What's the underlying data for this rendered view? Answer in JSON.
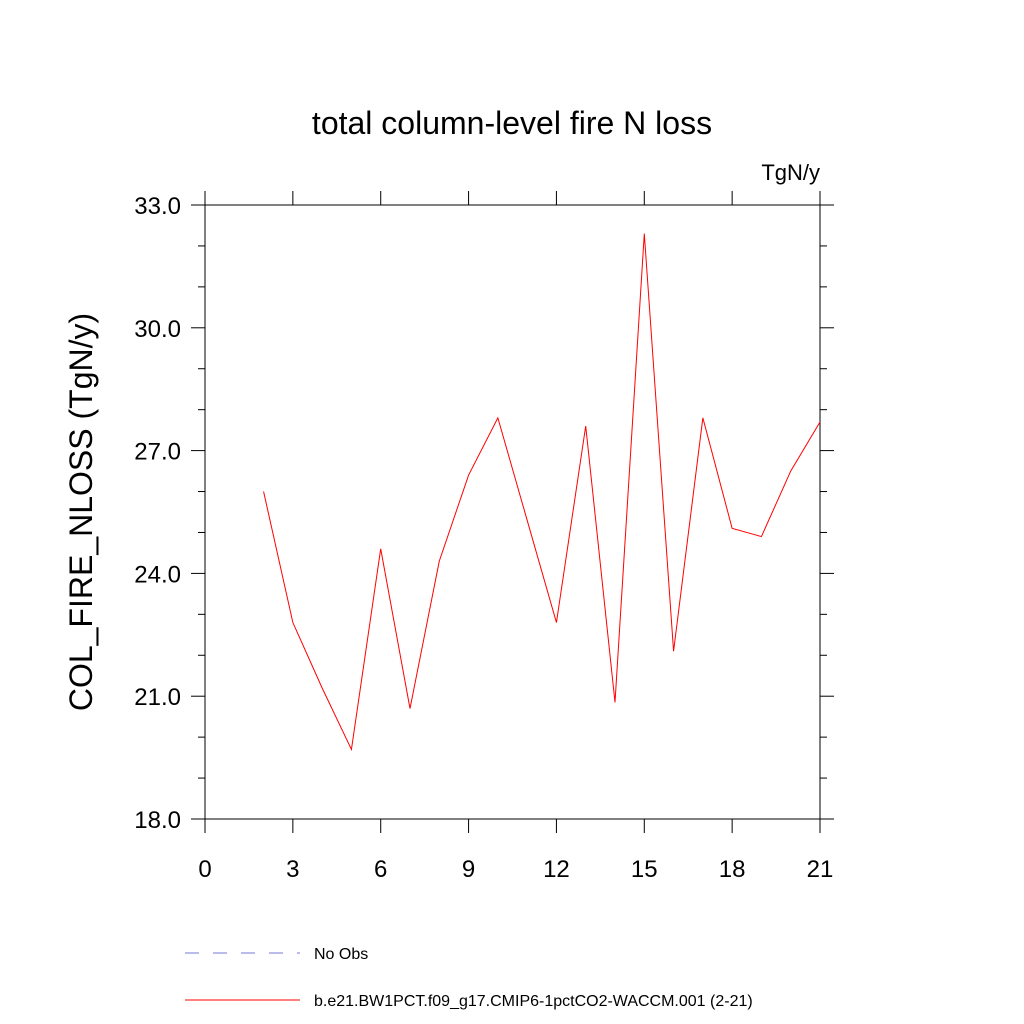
{
  "chart_data": {
    "type": "line",
    "title": "total column-level fire N loss",
    "units_label": "TgN/y",
    "xlabel": "",
    "ylabel": "COL_FIRE_NLOSS  (TgN/y)",
    "xlim": [
      0,
      21
    ],
    "ylim": [
      18.0,
      33.0
    ],
    "x_ticks": [
      0,
      3,
      6,
      9,
      12,
      15,
      18,
      21
    ],
    "x_tick_labels": [
      "0",
      "3",
      "6",
      "9",
      "12",
      "15",
      "18",
      "21"
    ],
    "y_ticks": [
      18.0,
      21.0,
      24.0,
      27.0,
      30.0,
      33.0
    ],
    "y_tick_labels": [
      "18.0",
      "21.0",
      "24.0",
      "27.0",
      "30.0",
      "33.0"
    ],
    "grid": false,
    "legend_position": "bottom",
    "series": [
      {
        "name": "No Obs",
        "color": "#7a7ad8",
        "style": "dashed",
        "x": [],
        "values": []
      },
      {
        "name": "b.e21.BW1PCT.f09_g17.CMIP6-1pctCO2-WACCM.001 (2-21)",
        "color": "#ff0000",
        "style": "solid",
        "x": [
          2,
          3,
          4,
          5,
          6,
          7,
          8,
          9,
          10,
          11,
          12,
          13,
          14,
          15,
          16,
          17,
          18,
          19,
          20,
          21
        ],
        "values": [
          26.0,
          22.8,
          21.2,
          19.7,
          24.6,
          20.7,
          24.3,
          26.4,
          27.8,
          25.3,
          22.8,
          27.6,
          20.85,
          32.3,
          22.1,
          27.8,
          25.1,
          24.9,
          26.5,
          27.7
        ]
      }
    ]
  }
}
